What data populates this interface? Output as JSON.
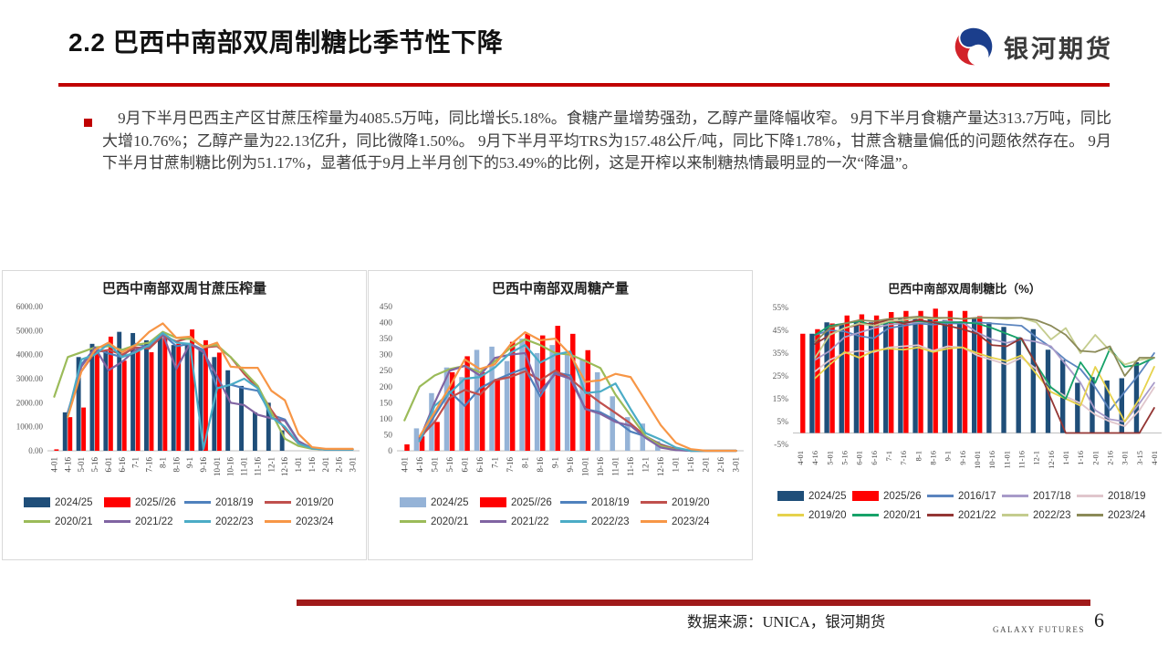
{
  "header": {
    "title": "2.2 巴西中南部双周制糖比季节性下降",
    "brand": "银河期货"
  },
  "body": {
    "paragraph": "　9月下半月巴西主产区甘蔗压榨量为4085.5万吨，同比增长5.18%。食糖产量增势强劲，乙醇产量降幅收窄。 9月下半月食糖产量达313.7万吨，同比大增10.76%；乙醇产量为22.13亿升，同比微降1.50%。 9月下半月平均TRS为157.48公斤/吨，同比下降1.78%，甘蔗含糖量偏低的问题依然存在。 9月下半月甘蔗制糖比例为51.17%，显著低于9月上半月创下的53.49%的比例，这是开榨以来制糖热情最明显的一次“降温”。"
  },
  "footer": {
    "source": "数据来源：UNICA，银河期货",
    "brand_small": "GALAXY FUTURES",
    "page": "6"
  },
  "colors": {
    "accent_red": "#C00000",
    "footer_red": "#A01A1A",
    "logo_blue": "#1B3E8C",
    "logo_red": "#D2232A",
    "bar_navy": "#1F4E79",
    "bar_light_blue": "#95B3D7",
    "bar_red": "#FF0000"
  },
  "chart_data": [
    {
      "type": "bar-line",
      "title": "巴西中南部双周甘蔗压榨量",
      "ylim": [
        0,
        6000
      ],
      "y_ticks": [
        {
          "v": 0,
          "label": "0.00"
        },
        {
          "v": 1000,
          "label": "1000.00"
        },
        {
          "v": 2000,
          "label": "2000.00"
        },
        {
          "v": 3000,
          "label": "3000.00"
        },
        {
          "v": 4000,
          "label": "4000.00"
        },
        {
          "v": 5000,
          "label": "5000.00"
        },
        {
          "v": 6000,
          "label": "6000.00"
        }
      ],
      "categories": [
        "4-01",
        "4-16",
        "5-01",
        "5-16",
        "6-01",
        "6-16",
        "7-1",
        "7-16",
        "8-1",
        "8-16",
        "9-1",
        "9-16",
        "10-01",
        "10-16",
        "11-01",
        "11-16",
        "12-1",
        "12-16",
        "1-01",
        "1-16",
        "2-01",
        "2-16",
        "3-01"
      ],
      "bar_series": [
        {
          "name": "2024/25",
          "color": "#1F4E79",
          "values": [
            null,
            1600,
            3900,
            4450,
            4150,
            4950,
            4900,
            4600,
            4800,
            4400,
            4400,
            4200,
            3900,
            3350,
            2700,
            1600,
            2000,
            850,
            null,
            null,
            null,
            null,
            null
          ]
        },
        {
          "name": "2025//26",
          "color": "#FF0000",
          "values": [
            60,
            1400,
            1800,
            4100,
            4750,
            3750,
            4200,
            4100,
            4700,
            4450,
            5050,
            4600,
            4085,
            null,
            null,
            null,
            null,
            null,
            null,
            null,
            null,
            null,
            null
          ]
        }
      ],
      "line_series": [
        {
          "name": "2018/19",
          "color": "#4F81BD",
          "values": [
            null,
            1500,
            3600,
            4250,
            4050,
            3900,
            4450,
            4300,
            4850,
            4350,
            4450,
            4200,
            2600,
            2750,
            2600,
            2500,
            1500,
            1300,
            400,
            100,
            50,
            50,
            50
          ]
        },
        {
          "name": "2019/20",
          "color": "#C0504D",
          "values": [
            null,
            1550,
            3300,
            4100,
            4200,
            4000,
            4300,
            4250,
            4800,
            4550,
            4700,
            4300,
            4350,
            3900,
            3200,
            2600,
            1700,
            900,
            300,
            100,
            50,
            50,
            50
          ]
        },
        {
          "name": "2020/21",
          "color": "#9BBB59",
          "values": [
            2250,
            3900,
            4100,
            4300,
            4350,
            4200,
            4400,
            4500,
            4950,
            4700,
            4650,
            4350,
            4400,
            3900,
            3300,
            2700,
            1600,
            500,
            200,
            80,
            50,
            50,
            50
          ]
        },
        {
          "name": "2021/22",
          "color": "#8064A2",
          "values": [
            null,
            1600,
            3500,
            4300,
            3350,
            3700,
            4200,
            4400,
            4850,
            3400,
            4450,
            4100,
            3100,
            2000,
            1900,
            1500,
            1350,
            1250,
            400,
            100,
            50,
            50,
            50
          ]
        },
        {
          "name": "2022/23",
          "color": "#4BACC6",
          "values": [
            null,
            1500,
            3800,
            4000,
            4450,
            3900,
            4100,
            4400,
            4900,
            4500,
            4450,
            80,
            2600,
            2750,
            3000,
            2600,
            1400,
            1000,
            300,
            100,
            50,
            50,
            50
          ]
        },
        {
          "name": "2023/24",
          "color": "#F79646",
          "values": [
            null,
            1400,
            3300,
            4200,
            4500,
            4100,
            4400,
            4950,
            5300,
            4700,
            4750,
            4300,
            4500,
            3500,
            3450,
            3450,
            2500,
            2100,
            700,
            150,
            80,
            80,
            80
          ]
        }
      ]
    },
    {
      "type": "bar-line",
      "title": "巴西中南部双周糖产量",
      "ylim": [
        0,
        450
      ],
      "y_ticks": [
        {
          "v": 0,
          "label": "0"
        },
        {
          "v": 50,
          "label": "50"
        },
        {
          "v": 100,
          "label": "100"
        },
        {
          "v": 150,
          "label": "150"
        },
        {
          "v": 200,
          "label": "200"
        },
        {
          "v": 250,
          "label": "250"
        },
        {
          "v": 300,
          "label": "300"
        },
        {
          "v": 350,
          "label": "350"
        },
        {
          "v": 400,
          "label": "400"
        },
        {
          "v": 450,
          "label": "450"
        }
      ],
      "categories": [
        "4-01",
        "4-16",
        "5-01",
        "5-16",
        "6-01",
        "6-16",
        "7-1",
        "7-16",
        "8-1",
        "8-16",
        "9-1",
        "9-16",
        "10-01",
        "10-16",
        "11-01",
        "11-16",
        "12-1",
        "12-16",
        "1-01",
        "1-16",
        "2-01",
        "2-16",
        "3-01"
      ],
      "bar_series": [
        {
          "name": "2024/25",
          "color": "#95B3D7",
          "values": [
            null,
            70,
            180,
            260,
            230,
            315,
            325,
            280,
            350,
            305,
            330,
            300,
            285,
            245,
            170,
            105,
            85,
            30,
            null,
            null,
            null,
            null,
            null
          ]
        },
        {
          "name": "2025//26",
          "color": "#FF0000",
          "values": [
            20,
            45,
            90,
            245,
            295,
            245,
            225,
            340,
            365,
            360,
            390,
            365,
            314,
            null,
            null,
            null,
            null,
            null,
            null,
            null,
            null,
            null,
            null
          ]
        }
      ],
      "line_series": [
        {
          "name": "2018/19",
          "color": "#4F81BD",
          "values": [
            null,
            30,
            110,
            185,
            140,
            195,
            220,
            240,
            258,
            170,
            245,
            235,
            130,
            120,
            95,
            60,
            45,
            20,
            5,
            0,
            0,
            0,
            0
          ]
        },
        {
          "name": "2019/20",
          "color": "#C0504D",
          "values": [
            null,
            40,
            90,
            165,
            190,
            175,
            220,
            230,
            248,
            220,
            250,
            225,
            185,
            150,
            118,
            85,
            45,
            18,
            5,
            0,
            0,
            0,
            0
          ]
        },
        {
          "name": "2020/21",
          "color": "#9BBB59",
          "values": [
            95,
            200,
            235,
            255,
            265,
            245,
            280,
            320,
            348,
            330,
            305,
            300,
            280,
            258,
            175,
            110,
            45,
            15,
            3,
            0,
            0,
            0,
            0
          ]
        },
        {
          "name": "2021/22",
          "color": "#8064A2",
          "values": [
            null,
            35,
            150,
            250,
            265,
            235,
            290,
            300,
            305,
            185,
            240,
            225,
            130,
            115,
            90,
            78,
            40,
            10,
            2,
            0,
            0,
            0,
            0
          ]
        },
        {
          "name": "2022/23",
          "color": "#4BACC6",
          "values": [
            null,
            30,
            140,
            180,
            225,
            230,
            260,
            305,
            330,
            275,
            300,
            310,
            180,
            185,
            210,
            130,
            55,
            35,
            10,
            0,
            0,
            0,
            0
          ]
        },
        {
          "name": "2023/24",
          "color": "#F79646",
          "values": [
            null,
            45,
            120,
            200,
            285,
            255,
            270,
            330,
            370,
            345,
            350,
            300,
            215,
            220,
            240,
            230,
            155,
            80,
            25,
            5,
            0,
            0,
            0
          ]
        }
      ]
    },
    {
      "type": "bar-line",
      "title": "巴西中南部双周制糖比（%）",
      "ylim": [
        -5,
        55
      ],
      "y_ticks": [
        {
          "v": -5,
          "label": "-5%"
        },
        {
          "v": 5,
          "label": "5%"
        },
        {
          "v": 15,
          "label": "15%"
        },
        {
          "v": 25,
          "label": "25%"
        },
        {
          "v": 35,
          "label": "35%"
        },
        {
          "v": 45,
          "label": "45%"
        },
        {
          "v": 55,
          "label": "55%"
        }
      ],
      "categories": [
        "4-01",
        "4-16",
        "5-01",
        "5-16",
        "6-01",
        "6-16",
        "7-1",
        "7-16",
        "8-1",
        "8-16",
        "9-1",
        "9-16",
        "10-01",
        "10-16",
        "11-01",
        "11-16",
        "12-1",
        "12-16",
        "1-01",
        "1-16",
        "2-01",
        "2-16",
        "3-01",
        "3-15",
        "4-01"
      ],
      "bar_series": [
        {
          "name": "2024/25",
          "color": "#1F4E79",
          "values": [
            null,
            43.5,
            48.5,
            47.5,
            48.5,
            48.5,
            49.5,
            50,
            50,
            50,
            49.5,
            49,
            50.5,
            48.5,
            46.5,
            42,
            45.5,
            36.5,
            32,
            22,
            24.5,
            23,
            24,
            31,
            null
          ]
        },
        {
          "name": "2025/26",
          "color": "#FF0000",
          "values": [
            43.5,
            45.5,
            48,
            51.5,
            52,
            51.5,
            53,
            53.5,
            53.5,
            54.5,
            53.5,
            53.5,
            51.2,
            null,
            null,
            null,
            null,
            null,
            null,
            null,
            null,
            null,
            null,
            null,
            null
          ]
        }
      ],
      "line_series": [
        {
          "name": "2016/17",
          "color": "#5B84BE",
          "values": [
            null,
            43,
            45,
            44.5,
            42.5,
            41.5,
            46,
            47,
            48,
            47.5,
            48,
            48,
            48.5,
            48,
            47.5,
            47,
            42,
            37.5,
            32,
            28,
            20,
            10,
            18,
            26,
            35
          ]
        },
        {
          "name": "2017/18",
          "color": "#A89BC9",
          "values": [
            null,
            32,
            36,
            42,
            44,
            46,
            47.5,
            48,
            48.5,
            48.5,
            49,
            48.5,
            44,
            41,
            39.5,
            41,
            40,
            38,
            30,
            22,
            10,
            6,
            5,
            13,
            22
          ]
        },
        {
          "name": "2018/19",
          "color": "#E0C6CC",
          "values": [
            null,
            27,
            32,
            35,
            36,
            35.5,
            37.5,
            38,
            38.5,
            36,
            38,
            37.5,
            34,
            32,
            30,
            33,
            28,
            20,
            16,
            13,
            8,
            5,
            3,
            10,
            20
          ]
        },
        {
          "name": "2019/20",
          "color": "#E6D24C",
          "values": [
            null,
            24,
            30,
            35.5,
            33,
            36,
            37,
            36.5,
            37.5,
            35.5,
            37,
            37.5,
            35,
            33,
            31.5,
            34,
            26,
            18,
            15,
            12,
            29,
            17,
            5,
            15,
            29
          ]
        },
        {
          "name": "2020/21",
          "color": "#17A269",
          "values": [
            null,
            43,
            47,
            48,
            49,
            47,
            48.5,
            48.5,
            49,
            48.5,
            48.5,
            48.5,
            48,
            46,
            43.5,
            41,
            30,
            20,
            15,
            31,
            22,
            37,
            29,
            30,
            33
          ]
        },
        {
          "name": "2021/22",
          "color": "#943634",
          "values": [
            null,
            39,
            43,
            46,
            47.5,
            48,
            49.5,
            48,
            49.5,
            48.5,
            47,
            45.5,
            43.5,
            38.5,
            38,
            41.5,
            30,
            15,
            0,
            0,
            0,
            0,
            0,
            0,
            11
          ]
        },
        {
          "name": "2022/23",
          "color": "#C4CC8E",
          "values": [
            null,
            33,
            43,
            46,
            48,
            47,
            49,
            49.5,
            50.5,
            50,
            50.5,
            50,
            50.5,
            50.5,
            50,
            50.5,
            48.5,
            41,
            46,
            35,
            43,
            36,
            30,
            32,
            33
          ]
        },
        {
          "name": "2023/24",
          "color": "#8B8A58",
          "values": [
            null,
            40,
            46,
            48,
            49.5,
            49,
            50,
            50.5,
            51,
            50.5,
            50.5,
            50,
            50.5,
            50.5,
            50.5,
            50.5,
            49.5,
            47,
            43,
            36,
            35.5,
            38,
            25,
            33,
            33
          ]
        }
      ]
    }
  ]
}
